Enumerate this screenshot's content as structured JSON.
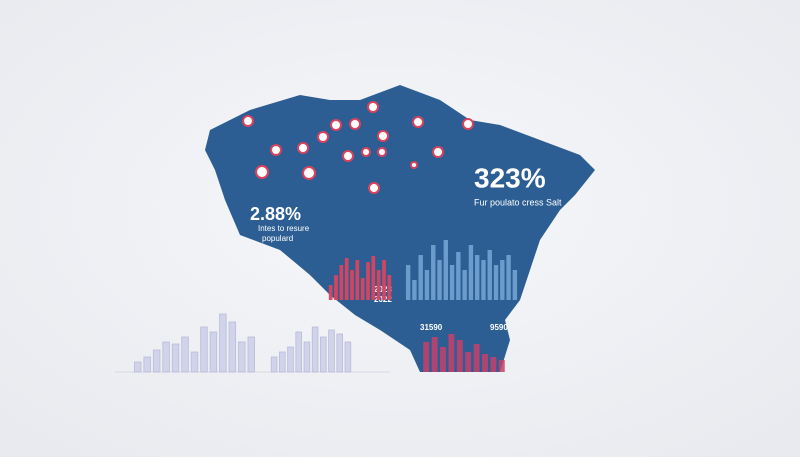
{
  "callouts": [
    {
      "value": "2.88%",
      "caption": [
        "Intes to resure",
        "populard"
      ]
    },
    {
      "value": "323%",
      "caption": [
        "Fur poulato cress Salt"
      ]
    }
  ],
  "labels": [
    "2023",
    "2022",
    "31590",
    "9590"
  ],
  "mini_charts": [
    {
      "color": "#d9435e",
      "values": [
        15,
        25,
        35,
        42,
        30,
        40,
        22,
        38,
        44,
        30,
        40,
        25
      ]
    },
    {
      "color": "#6f9fd0",
      "values": [
        35,
        20,
        45,
        30,
        55,
        40,
        60,
        35,
        48,
        30,
        55,
        45,
        40,
        50,
        35,
        40,
        45,
        30
      ]
    },
    {
      "color": "#d0d2ea",
      "values": [
        10,
        15,
        22,
        30,
        28,
        35,
        20,
        45,
        40,
        58,
        50,
        30,
        35
      ]
    },
    {
      "color": "#d0d2ea",
      "values": [
        15,
        20,
        25,
        40,
        30,
        45,
        35,
        42,
        38,
        30
      ]
    },
    {
      "color": "#c8406a",
      "values": [
        30,
        35,
        25,
        38,
        32,
        20,
        28,
        18,
        15,
        12
      ]
    }
  ]
}
